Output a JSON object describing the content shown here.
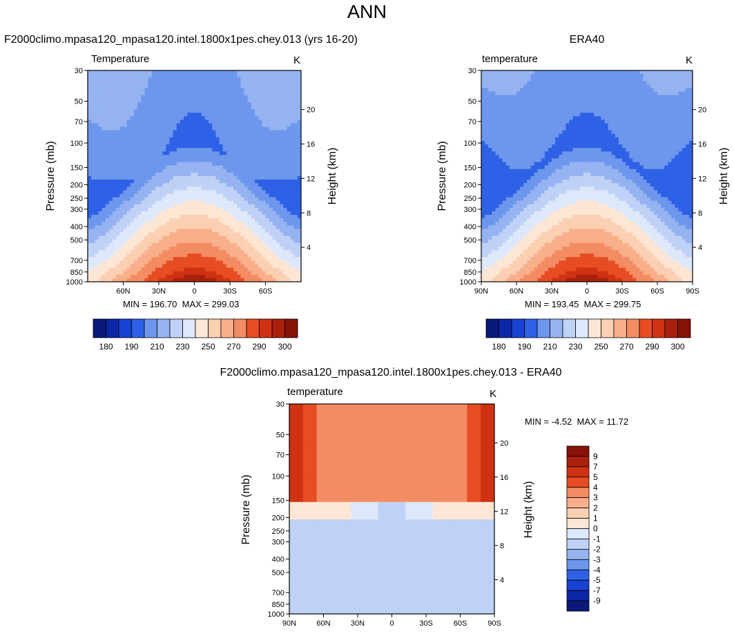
{
  "page": {
    "title": "ANN"
  },
  "colors": {
    "blues": [
      "#0a1a7a",
      "#0b27a8",
      "#1742d4",
      "#2e61e6",
      "#4b7ee8",
      "#6d97ec",
      "#95b3f1",
      "#bfd1f6",
      "#dde8fb"
    ],
    "reds": [
      "#fde6d4",
      "#fbcfb2",
      "#f8af8a",
      "#f48c63",
      "#ef6a3e",
      "#e74d22",
      "#cf3212",
      "#a9200c",
      "#861208"
    ]
  },
  "chart_data": [
    {
      "type": "contour",
      "id": "model",
      "panel_title": "F2000climo.mpasa120_mpasa120.intel.1800x1pes.chey.013 (yrs 16-20)",
      "variable_label": "Temperature",
      "units_label": "K",
      "ylabel": "Pressure (mb)",
      "y2label": "Height (km)",
      "pressure_ticks": [
        30,
        50,
        70,
        100,
        150,
        200,
        250,
        300,
        400,
        500,
        700,
        850,
        1000
      ],
      "pressure_tick_labels": [
        "30",
        "50",
        "70",
        "100",
        "150",
        "200",
        "250",
        "300",
        "400",
        "500",
        "700",
        "850",
        "1000"
      ],
      "height_ticks": [
        4,
        8,
        12,
        16,
        20
      ],
      "height_tick_labels": [
        "4",
        "8",
        "12",
        "16",
        "20"
      ],
      "x_ticks": [
        60,
        30,
        0,
        -30,
        -60
      ],
      "x_tick_labels": [
        "60N",
        "30N",
        "0",
        "30S",
        "60S"
      ],
      "xlim": [
        90,
        -90
      ],
      "ylim": [
        1000,
        30
      ],
      "min_label": "MIN = 196.70",
      "max_label": "MAX = 299.03",
      "min": 196.7,
      "max": 299.03,
      "colorbar": {
        "orientation": "horizontal",
        "levels": [
          180,
          185,
          190,
          200,
          210,
          220,
          230,
          240,
          250,
          260,
          270,
          280,
          290,
          295,
          300
        ],
        "tick_labels": [
          "180",
          "190",
          "210",
          "230",
          "250",
          "270",
          "290",
          "300"
        ],
        "tick_values": [
          180,
          190,
          210,
          230,
          250,
          270,
          290,
          300
        ]
      }
    },
    {
      "type": "contour",
      "id": "obs",
      "panel_title": "ERA40",
      "variable_label": "temperature",
      "units_label": "K",
      "ylabel": "Pressure (mb)",
      "y2label": "Height (km)",
      "pressure_ticks": [
        30,
        50,
        70,
        100,
        150,
        200,
        250,
        300,
        400,
        500,
        700,
        850,
        1000
      ],
      "pressure_tick_labels": [
        "30",
        "50",
        "70",
        "100",
        "150",
        "200",
        "250",
        "300",
        "400",
        "500",
        "700",
        "850",
        "1000"
      ],
      "height_ticks": [
        4,
        8,
        12,
        16,
        20
      ],
      "height_tick_labels": [
        "4",
        "8",
        "12",
        "16",
        "20"
      ],
      "x_ticks": [
        90,
        60,
        30,
        0,
        -30,
        -60,
        -90
      ],
      "x_tick_labels": [
        "90N",
        "60N",
        "30N",
        "0",
        "30S",
        "60S",
        "90S"
      ],
      "xlim": [
        90,
        -90
      ],
      "ylim": [
        1000,
        30
      ],
      "min_label": "MIN = 193.45",
      "max_label": "MAX = 299.75",
      "min": 193.45,
      "max": 299.75,
      "colorbar": {
        "orientation": "horizontal",
        "levels": [
          180,
          185,
          190,
          200,
          210,
          220,
          230,
          240,
          250,
          260,
          270,
          280,
          290,
          295,
          300
        ],
        "tick_labels": [
          "180",
          "190",
          "210",
          "230",
          "250",
          "270",
          "290",
          "300"
        ],
        "tick_values": [
          180,
          190,
          210,
          230,
          250,
          270,
          290,
          300
        ]
      }
    },
    {
      "type": "contour",
      "id": "diff",
      "panel_title": "F2000climo.mpasa120_mpasa120.intel.1800x1pes.chey.013 - ERA40",
      "variable_label": "temperature",
      "units_label": "K",
      "ylabel": "Pressure (mb)",
      "y2label": "Height (km)",
      "pressure_ticks": [
        30,
        50,
        70,
        100,
        150,
        200,
        250,
        300,
        400,
        500,
        700,
        850,
        1000
      ],
      "pressure_tick_labels": [
        "30",
        "50",
        "70",
        "100",
        "150",
        "200",
        "250",
        "300",
        "400",
        "500",
        "700",
        "850",
        "1000"
      ],
      "height_ticks": [
        4,
        8,
        12,
        16,
        20
      ],
      "height_tick_labels": [
        "4",
        "8",
        "12",
        "16",
        "20"
      ],
      "x_ticks": [
        90,
        60,
        30,
        0,
        -30,
        -60,
        -90
      ],
      "x_tick_labels": [
        "90N",
        "60N",
        "30N",
        "0",
        "30S",
        "60S",
        "90S"
      ],
      "xlim": [
        90,
        -90
      ],
      "ylim": [
        1000,
        30
      ],
      "min_label": "MIN =  -4.52",
      "max_label": "MAX =  11.72",
      "min": -4.52,
      "max": 11.72,
      "colorbar": {
        "orientation": "vertical",
        "levels": [
          -9,
          -7,
          -5,
          -4,
          -3,
          -2,
          -1,
          0,
          1,
          2,
          3,
          4,
          5,
          7,
          9
        ],
        "tick_labels": [
          "-9",
          "-7",
          "-5",
          "-4",
          "-3",
          "-2",
          "-1",
          "0",
          "1",
          "2",
          "3",
          "4",
          "5",
          "7",
          "9"
        ],
        "tick_values": [
          -9,
          -7,
          -5,
          -4,
          -3,
          -2,
          -1,
          0,
          1,
          2,
          3,
          4,
          5,
          7,
          9
        ]
      }
    }
  ]
}
